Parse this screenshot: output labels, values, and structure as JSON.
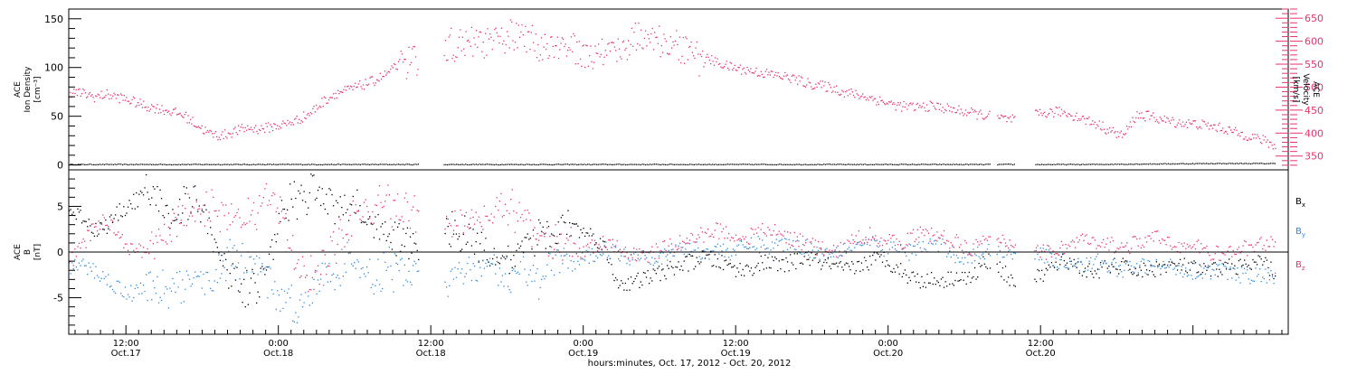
{
  "chart_data": [
    {
      "type": "scatter",
      "panel": "top",
      "ylabel_left": [
        "ACE",
        "Ion Density",
        "[cm⁻³]"
      ],
      "ylabel_right": [
        "ACE",
        "Velocity",
        "[km/s]"
      ],
      "ylim_left": [
        -5,
        160
      ],
      "yticks_left": [
        0,
        50,
        100,
        150
      ],
      "ylim_right": [
        320,
        670
      ],
      "yticks_right": [
        350,
        400,
        450,
        500,
        550,
        600,
        650
      ],
      "series": [
        {
          "axis": "right",
          "color": "#e8336b",
          "x": [
            0,
            1,
            2,
            3,
            4,
            5,
            6,
            7,
            8,
            9,
            10,
            11,
            12,
            13,
            14,
            15,
            16,
            17,
            18,
            19,
            20,
            21,
            22,
            23,
            24,
            25,
            26,
            27,
            28,
            29,
            30,
            31,
            32,
            33,
            34,
            35,
            36,
            37,
            38,
            39,
            40,
            41,
            42,
            43,
            44,
            45,
            46,
            47,
            48,
            49,
            50,
            51,
            52,
            53,
            54,
            55,
            56,
            57,
            58,
            59,
            60,
            61,
            62,
            63,
            64,
            65,
            66,
            67,
            68,
            69,
            70,
            71,
            72,
            73,
            74,
            75,
            76,
            77,
            78,
            79,
            80,
            81,
            82,
            83,
            84,
            85,
            86,
            87,
            88,
            89,
            90,
            91,
            92,
            93,
            94,
            95
          ],
          "values": [
            490,
            488,
            480,
            485,
            478,
            470,
            460,
            455,
            448,
            440,
            420,
            400,
            395,
            405,
            412,
            410,
            415,
            420,
            430,
            445,
            470,
            488,
            495,
            505,
            515,
            530,
            550,
            560,
            575,
            590,
            600,
            595,
            605,
            600,
            610,
            620,
            610,
            600,
            595,
            598,
            588,
            580,
            585,
            592,
            600,
            620,
            612,
            600,
            595,
            580,
            565,
            555,
            545,
            540,
            535,
            530,
            525,
            520,
            510,
            505,
            500,
            490,
            485,
            478,
            470,
            462,
            458,
            458,
            460,
            455,
            450,
            445,
            440,
            435,
            430,
            432,
            440,
            445,
            448,
            440,
            430,
            420,
            405,
            395,
            440,
            438,
            430,
            425,
            422,
            420,
            415,
            410,
            400,
            395,
            385,
            372
          ]
        },
        {
          "axis": "left",
          "color": "#000000",
          "x": [
            0,
            10,
            20,
            30,
            40,
            50,
            60,
            70,
            80,
            90,
            95
          ],
          "values": [
            1,
            1,
            1,
            1,
            1,
            1,
            1,
            1,
            1,
            2,
            2
          ]
        }
      ],
      "gaps": [
        [
          27.5,
          29.5
        ],
        [
          72.5,
          73
        ],
        [
          74.5,
          76
        ]
      ],
      "grid": false
    },
    {
      "type": "scatter",
      "panel": "bottom",
      "ylabel_left": [
        "ACE",
        "B",
        "[nT]"
      ],
      "ylim": [
        -9,
        9
      ],
      "yticks": [
        -5,
        0,
        5
      ],
      "zero_line": true,
      "series": [
        {
          "name": "Bx",
          "color": "#000000",
          "x": [
            0,
            1,
            2,
            3,
            4,
            5,
            6,
            7,
            8,
            9,
            10,
            11,
            12,
            13,
            14,
            15,
            16,
            17,
            18,
            19,
            20,
            21,
            22,
            23,
            24,
            25,
            26,
            27,
            28,
            29,
            30,
            31,
            32,
            33,
            34,
            35,
            36,
            37,
            38,
            39,
            40,
            41,
            42,
            43,
            44,
            45,
            46,
            47,
            48,
            49,
            50,
            51,
            52,
            53,
            54,
            55,
            56,
            57,
            58,
            59,
            60,
            61,
            62,
            63,
            64,
            65,
            66,
            67,
            68,
            69,
            70,
            71,
            72,
            73,
            74,
            75,
            76,
            77,
            78,
            79,
            80,
            81,
            82,
            83,
            84,
            85,
            86,
            87,
            88,
            89,
            90,
            91,
            92,
            93,
            94,
            95
          ],
          "values": [
            4.5,
            4.0,
            2.5,
            3.0,
            4.5,
            5.5,
            6.5,
            6.0,
            4.0,
            5.5,
            6.0,
            2.0,
            -1.0,
            -3.0,
            -4.0,
            -3.0,
            1.0,
            5.0,
            6.0,
            6.5,
            6.0,
            5.5,
            5.0,
            4.0,
            3.0,
            2.0,
            1.5,
            1.0,
            0.5,
            2.0,
            2.5,
            2.0,
            1.0,
            0.0,
            -0.5,
            -1.0,
            0.5,
            2.0,
            2.5,
            3.0,
            2.5,
            2.0,
            1.0,
            -3.0,
            -3.5,
            -3.0,
            -2.5,
            -2.0,
            -1.5,
            -1.0,
            -0.5,
            -1.0,
            -1.5,
            -2.0,
            -1.5,
            -1.0,
            -1.5,
            -1.0,
            -0.5,
            -1.0,
            -1.5,
            -2.0,
            -1.5,
            -1.0,
            -0.5,
            -1.5,
            -2.5,
            -3.0,
            -3.0,
            -3.0,
            -2.5,
            -3.0,
            -1.0,
            -1.0,
            -3.0,
            -3.0,
            -3.0,
            -2.0,
            -1.0,
            -1.0,
            -2.0,
            -2.0,
            -1.5,
            -1.5,
            -2.0,
            -2.0,
            -1.5,
            -1.5,
            -1.5,
            -2.0,
            -2.0,
            -1.5,
            -1.5,
            -1.5,
            -1.0,
            -2.5
          ]
        },
        {
          "name": "By",
          "color": "#2b8ae0",
          "x": [
            0,
            1,
            2,
            3,
            4,
            5,
            6,
            7,
            8,
            9,
            10,
            11,
            12,
            13,
            14,
            15,
            16,
            17,
            18,
            19,
            20,
            21,
            22,
            23,
            24,
            25,
            26,
            27,
            28,
            29,
            30,
            31,
            32,
            33,
            34,
            35,
            36,
            37,
            38,
            39,
            40,
            41,
            42,
            43,
            44,
            45,
            46,
            47,
            48,
            49,
            50,
            51,
            52,
            53,
            54,
            55,
            56,
            57,
            58,
            59,
            60,
            61,
            62,
            63,
            64,
            65,
            66,
            67,
            68,
            69,
            70,
            71,
            72,
            73,
            74,
            75,
            76,
            77,
            78,
            79,
            80,
            81,
            82,
            83,
            84,
            85,
            86,
            87,
            88,
            89,
            90,
            91,
            92,
            93,
            94,
            95
          ],
          "values": [
            -1.5,
            -1.5,
            -2.0,
            -3.0,
            -4.0,
            -4.5,
            -3.5,
            -4.0,
            -4.0,
            -3.5,
            -4.0,
            -3.0,
            -1.0,
            -0.5,
            -2.0,
            -1.0,
            -4.0,
            -5.0,
            -6.0,
            -4.0,
            -3.0,
            -2.0,
            -1.0,
            -2.0,
            -3.0,
            -1.5,
            -2.5,
            -2.0,
            -1.0,
            -2.5,
            -3.0,
            -2.5,
            -2.0,
            -1.5,
            -3.0,
            -2.5,
            -2.0,
            -3.0,
            -1.0,
            -1.5,
            -1.0,
            -0.5,
            0.5,
            0.0,
            -0.5,
            0.0,
            -0.5,
            -0.5,
            0.5,
            0.5,
            0.0,
            0.5,
            0.0,
            0.5,
            1.0,
            0.5,
            1.0,
            1.0,
            0.5,
            0.0,
            0.0,
            0.5,
            1.0,
            1.0,
            0.5,
            0.5,
            0.0,
            0.5,
            1.0,
            0.5,
            -0.5,
            -0.5,
            0.0,
            0.5,
            0.0,
            0.5,
            0.0,
            -0.5,
            -1.0,
            -1.0,
            -1.5,
            -1.0,
            -1.5,
            -2.0,
            -1.5,
            -1.5,
            -1.5,
            -1.5,
            -2.0,
            -2.0,
            -2.0,
            -2.0,
            -2.5,
            -2.5,
            -2.5,
            -3.0
          ]
        },
        {
          "name": "Bz",
          "color": "#e8336b",
          "x": [
            0,
            1,
            2,
            3,
            4,
            5,
            6,
            7,
            8,
            9,
            10,
            11,
            12,
            13,
            14,
            15,
            16,
            17,
            18,
            19,
            20,
            21,
            22,
            23,
            24,
            25,
            26,
            27,
            28,
            29,
            30,
            31,
            32,
            33,
            34,
            35,
            36,
            37,
            38,
            39,
            40,
            41,
            42,
            43,
            44,
            45,
            46,
            47,
            48,
            49,
            50,
            51,
            52,
            53,
            54,
            55,
            56,
            57,
            58,
            59,
            60,
            61,
            62,
            63,
            64,
            65,
            66,
            67,
            68,
            69,
            70,
            71,
            72,
            73,
            74,
            75,
            76,
            77,
            78,
            79,
            80,
            81,
            82,
            83,
            84,
            85,
            86,
            87,
            88,
            89,
            90,
            91,
            92,
            93,
            94,
            95
          ],
          "values": [
            -1.0,
            0.5,
            3.0,
            3.5,
            2.0,
            0.0,
            0.5,
            1.5,
            2.5,
            4.0,
            4.5,
            5.0,
            4.0,
            3.5,
            4.5,
            5.0,
            6.0,
            4.0,
            -2.0,
            -3.0,
            -1.0,
            1.0,
            3.0,
            4.5,
            5.0,
            5.5,
            4.5,
            4.0,
            3.5,
            3.0,
            3.5,
            4.0,
            3.0,
            4.5,
            5.0,
            4.5,
            3.0,
            2.0,
            1.0,
            0.5,
            0.0,
            0.5,
            1.0,
            0.5,
            0.0,
            -0.5,
            0.0,
            0.5,
            1.0,
            1.5,
            2.0,
            2.5,
            2.0,
            1.5,
            2.0,
            2.5,
            2.0,
            1.5,
            1.0,
            0.5,
            0.0,
            0.5,
            1.5,
            2.0,
            1.5,
            1.0,
            1.5,
            2.0,
            2.0,
            1.5,
            1.0,
            0.5,
            1.0,
            1.5,
            1.0,
            1.5,
            0.5,
            0.0,
            0.5,
            1.0,
            1.5,
            0.5,
            1.0,
            0.5,
            1.0,
            1.5,
            1.5,
            1.0,
            0.5,
            0.5,
            0.0,
            -0.5,
            0.5,
            0.5,
            1.0,
            1.5
          ]
        }
      ],
      "legend": [
        "B_x",
        "B_y",
        "B_z"
      ],
      "gaps": [
        [
          27.5,
          29.5
        ],
        [
          72.5,
          73
        ],
        [
          74.5,
          76
        ]
      ],
      "grid": false
    }
  ],
  "x_axis": {
    "xlim": [
      0,
      96
    ],
    "xlabel": "hours:minutes, Oct. 17, 2012 - Oct. 20, 2012",
    "ticks": [
      {
        "x": 4.5,
        "time": "12:00",
        "date": "Oct.17"
      },
      {
        "x": 16.5,
        "time": "0:00",
        "date": "Oct.18"
      },
      {
        "x": 28.5,
        "time": "12:00",
        "date": "Oct.18"
      },
      {
        "x": 40.5,
        "time": "0:00",
        "date": "Oct.19"
      },
      {
        "x": 52.5,
        "time": "12:00",
        "date": "Oct.19"
      },
      {
        "x": 64.5,
        "time": "0:00",
        "date": "Oct.20"
      },
      {
        "x": 76.5,
        "time": "12:00",
        "date": "Oct.20"
      }
    ]
  },
  "colors": {
    "density": "#000000",
    "velocity": "#e8336b",
    "bx": "#000000",
    "by": "#2b8ae0",
    "bz": "#e8336b"
  }
}
